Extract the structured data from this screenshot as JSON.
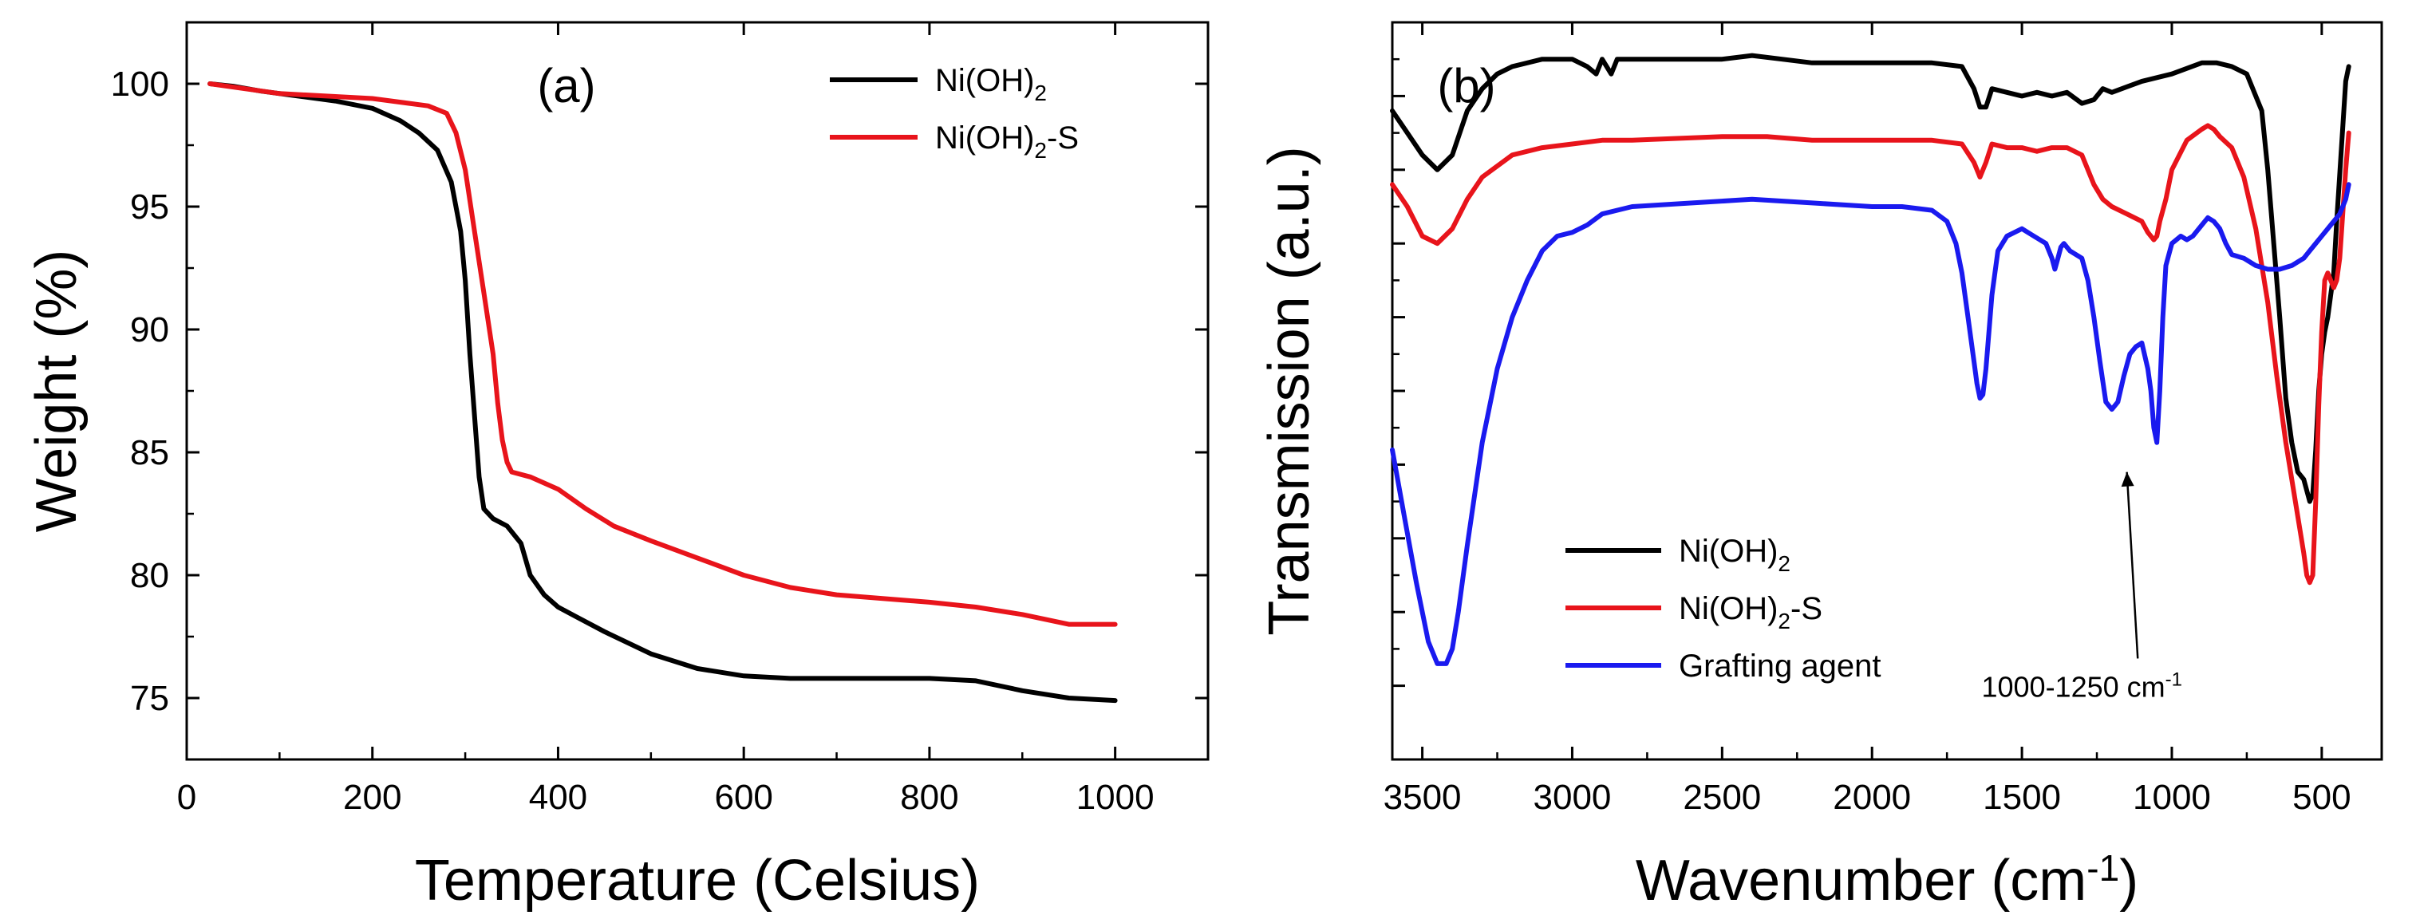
{
  "chart_data": [
    {
      "type": "line",
      "panel_label": "(a)",
      "xlabel": "Temperature (Celsius)",
      "ylabel": "Weight (%)",
      "xlim": [
        0,
        1100
      ],
      "ylim": [
        72.5,
        102.5
      ],
      "xticks": [
        0,
        200,
        400,
        600,
        800,
        1000
      ],
      "yticks": [
        75,
        80,
        85,
        90,
        95,
        100
      ],
      "legend_position": "top-right",
      "series": [
        {
          "name": "Ni(OH)2",
          "legend_base": "Ni(OH)",
          "legend_sub": "2",
          "legend_suffix": "",
          "color": "#000000",
          "x": [
            25,
            50,
            80,
            120,
            160,
            200,
            230,
            250,
            270,
            285,
            295,
            300,
            305,
            310,
            315,
            320,
            330,
            345,
            360,
            370,
            385,
            400,
            420,
            450,
            500,
            550,
            600,
            650,
            700,
            750,
            800,
            850,
            900,
            950,
            1000
          ],
          "y": [
            100,
            99.9,
            99.7,
            99.5,
            99.3,
            99.0,
            98.5,
            98.0,
            97.3,
            96.0,
            94.0,
            92.0,
            89.0,
            86.5,
            84.0,
            82.7,
            82.3,
            82.0,
            81.3,
            80.0,
            79.2,
            78.7,
            78.3,
            77.7,
            76.8,
            76.2,
            75.9,
            75.8,
            75.8,
            75.8,
            75.8,
            75.7,
            75.3,
            75.0,
            74.9
          ]
        },
        {
          "name": "Ni(OH)2-S",
          "legend_base": "Ni(OH)",
          "legend_sub": "2",
          "legend_suffix": "-S",
          "color": "#e8141b",
          "x": [
            25,
            100,
            200,
            260,
            280,
            290,
            300,
            310,
            320,
            330,
            335,
            340,
            345,
            350,
            370,
            400,
            430,
            460,
            500,
            550,
            600,
            650,
            700,
            800,
            850,
            900,
            950,
            1000
          ],
          "y": [
            100,
            99.6,
            99.4,
            99.1,
            98.8,
            98.0,
            96.5,
            94.0,
            91.5,
            89.0,
            87.0,
            85.5,
            84.6,
            84.2,
            84.0,
            83.5,
            82.7,
            82.0,
            81.4,
            80.7,
            80.0,
            79.5,
            79.2,
            78.9,
            78.7,
            78.4,
            78.0,
            78.0
          ]
        }
      ]
    },
    {
      "type": "line",
      "panel_label": "(b)",
      "xlabel_base": "Wavenumber (cm",
      "xlabel_sup": "-1",
      "xlabel_end": ")",
      "ylabel": "Transmission (a.u.)",
      "xlim": [
        3600,
        300
      ],
      "ylim": [
        0,
        10
      ],
      "xticks": [
        3500,
        3000,
        2500,
        2000,
        1500,
        1000,
        500
      ],
      "y_tick_labels": "none",
      "legend_position": "bottom-left",
      "annotation": {
        "text": "1000-1250 cm",
        "sup": "-1",
        "x": 1300,
        "y": 0.85,
        "arrow_to_x": 1150,
        "arrow_to_y": 3.9
      },
      "series": [
        {
          "name": "Ni(OH)2",
          "legend_base": "Ni(OH)",
          "legend_sub": "2",
          "legend_suffix": "",
          "color": "#000000",
          "x": [
            3600,
            3550,
            3500,
            3450,
            3400,
            3350,
            3300,
            3250,
            3200,
            3100,
            3000,
            2950,
            2920,
            2900,
            2870,
            2850,
            2800,
            2500,
            2400,
            2300,
            2200,
            2000,
            1800,
            1700,
            1660,
            1640,
            1620,
            1600,
            1550,
            1500,
            1450,
            1400,
            1350,
            1300,
            1260,
            1230,
            1200,
            1100,
            1000,
            900,
            850,
            800,
            750,
            700,
            680,
            660,
            640,
            620,
            600,
            580,
            560,
            540,
            530,
            520,
            510,
            500,
            490,
            480,
            470,
            460,
            450,
            420,
            410
          ],
          "y": [
            8.8,
            8.5,
            8.2,
            8.0,
            8.2,
            8.8,
            9.1,
            9.3,
            9.4,
            9.5,
            9.5,
            9.4,
            9.3,
            9.5,
            9.3,
            9.5,
            9.5,
            9.5,
            9.55,
            9.5,
            9.45,
            9.45,
            9.45,
            9.4,
            9.1,
            8.85,
            8.85,
            9.1,
            9.05,
            9.0,
            9.05,
            9.0,
            9.05,
            8.9,
            8.95,
            9.1,
            9.05,
            9.2,
            9.3,
            9.45,
            9.45,
            9.4,
            9.3,
            8.8,
            8.0,
            7.0,
            6.0,
            4.9,
            4.3,
            3.9,
            3.8,
            3.5,
            3.6,
            4.2,
            5.0,
            5.5,
            5.8,
            6.0,
            6.3,
            6.6,
            7.3,
            9.2,
            9.4
          ]
        },
        {
          "name": "Ni(OH)2-S",
          "legend_base": "Ni(OH)",
          "legend_sub": "2",
          "legend_suffix": "-S",
          "color": "#e8141b",
          "x": [
            3600,
            3550,
            3500,
            3450,
            3400,
            3350,
            3300,
            3200,
            3100,
            3000,
            2900,
            2800,
            2500,
            2350,
            2200,
            2000,
            1800,
            1700,
            1660,
            1640,
            1620,
            1600,
            1550,
            1500,
            1450,
            1400,
            1350,
            1300,
            1260,
            1230,
            1200,
            1150,
            1100,
            1080,
            1060,
            1050,
            1040,
            1020,
            1000,
            950,
            900,
            880,
            860,
            840,
            800,
            760,
            720,
            680,
            650,
            620,
            600,
            580,
            560,
            550,
            540,
            530,
            520,
            510,
            500,
            490,
            480,
            470,
            460,
            450,
            440,
            420,
            410
          ],
          "y": [
            7.8,
            7.5,
            7.1,
            7.0,
            7.2,
            7.6,
            7.9,
            8.2,
            8.3,
            8.35,
            8.4,
            8.4,
            8.45,
            8.45,
            8.4,
            8.4,
            8.4,
            8.35,
            8.1,
            7.9,
            8.1,
            8.35,
            8.3,
            8.3,
            8.25,
            8.3,
            8.3,
            8.2,
            7.8,
            7.6,
            7.5,
            7.4,
            7.3,
            7.15,
            7.05,
            7.1,
            7.3,
            7.6,
            8.0,
            8.4,
            8.55,
            8.6,
            8.55,
            8.45,
            8.3,
            7.9,
            7.2,
            6.2,
            5.2,
            4.3,
            3.8,
            3.3,
            2.8,
            2.5,
            2.4,
            2.5,
            3.5,
            4.8,
            5.8,
            6.5,
            6.6,
            6.5,
            6.4,
            6.5,
            6.8,
            8.0,
            8.5
          ]
        },
        {
          "name": "Grafting agent",
          "legend_base": "Grafting agent",
          "legend_sub": "",
          "legend_suffix": "",
          "color": "#1a1aef",
          "x": [
            3600,
            3560,
            3520,
            3480,
            3450,
            3420,
            3400,
            3380,
            3350,
            3300,
            3250,
            3200,
            3150,
            3100,
            3050,
            3000,
            2950,
            2900,
            2800,
            2600,
            2400,
            2200,
            2000,
            1900,
            1800,
            1750,
            1720,
            1700,
            1680,
            1660,
            1650,
            1640,
            1630,
            1620,
            1600,
            1580,
            1550,
            1500,
            1460,
            1420,
            1400,
            1390,
            1380,
            1370,
            1360,
            1340,
            1300,
            1280,
            1260,
            1240,
            1220,
            1200,
            1180,
            1160,
            1140,
            1120,
            1100,
            1080,
            1070,
            1060,
            1050,
            1040,
            1030,
            1020,
            1000,
            970,
            950,
            930,
            900,
            880,
            860,
            840,
            820,
            800,
            760,
            720,
            680,
            640,
            600,
            580,
            560,
            540,
            520,
            500,
            480,
            460,
            440,
            420,
            410
          ],
          "y": [
            4.2,
            3.3,
            2.4,
            1.6,
            1.3,
            1.3,
            1.5,
            2.0,
            2.9,
            4.3,
            5.3,
            6.0,
            6.5,
            6.9,
            7.1,
            7.15,
            7.25,
            7.4,
            7.5,
            7.55,
            7.6,
            7.55,
            7.5,
            7.5,
            7.45,
            7.3,
            7.0,
            6.6,
            6.0,
            5.4,
            5.1,
            4.9,
            4.95,
            5.3,
            6.3,
            6.9,
            7.1,
            7.2,
            7.1,
            7.0,
            6.8,
            6.65,
            6.8,
            6.95,
            7.0,
            6.9,
            6.8,
            6.5,
            6.0,
            5.4,
            4.85,
            4.75,
            4.85,
            5.2,
            5.5,
            5.6,
            5.65,
            5.3,
            5.0,
            4.5,
            4.3,
            5.0,
            6.0,
            6.7,
            7.0,
            7.1,
            7.05,
            7.1,
            7.25,
            7.35,
            7.3,
            7.2,
            7.0,
            6.85,
            6.8,
            6.7,
            6.65,
            6.65,
            6.7,
            6.75,
            6.8,
            6.9,
            7.0,
            7.1,
            7.2,
            7.3,
            7.4,
            7.6,
            7.8
          ]
        }
      ]
    }
  ]
}
